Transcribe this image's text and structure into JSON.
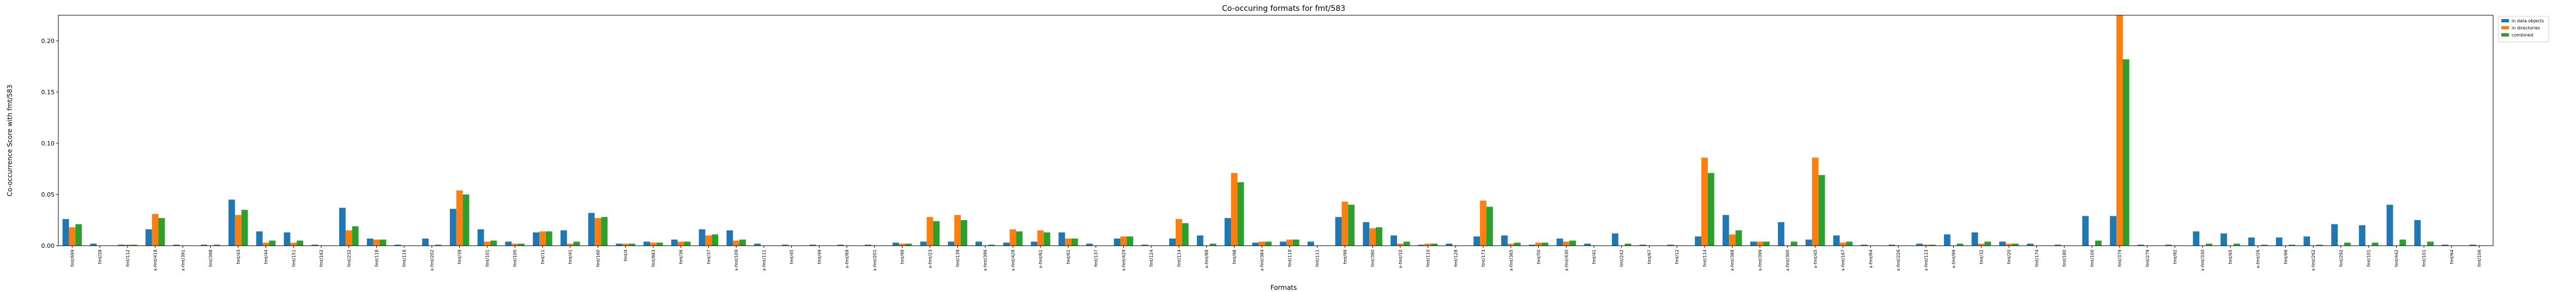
{
  "chart_data": {
    "type": "bar",
    "title": "Co-occuring formats for fmt/583",
    "xlabel": "Formats",
    "ylabel": "Co-occurrence Score with fmt/583",
    "ylim": [
      0,
      0.225
    ],
    "yticks": [
      0.0,
      0.05,
      0.1,
      0.15,
      0.2
    ],
    "ytick_labels": [
      "0.00",
      "0.05",
      "0.10",
      "0.15",
      "0.20"
    ],
    "grid": false,
    "legend_position": "top-right",
    "colors": [
      "#1f77b4",
      "#ff7f0e",
      "#2ca02c"
    ],
    "categories": [
      "fmt/699",
      "fmt/28",
      "fmt/112",
      "x-fmt/418",
      "x-fmt/391",
      "fmt/398",
      "fmt/43",
      "fmt/44",
      "fmt/151",
      "fmt/162",
      "fmt/232",
      "fmt/118",
      "fmt/116",
      "x-fmt/202",
      "fmt/39",
      "fmt/101",
      "fmt/100",
      "fmt/11",
      "fmt/41",
      "fmt/160",
      "fmt/4",
      "fmt/683",
      "fmt/36",
      "fmt/37",
      "x-fmt/109",
      "x-fmt/111",
      "fmt/45",
      "fmt/49",
      "x-fmt/69",
      "x-fmt/201",
      "fmt/99",
      "x-fmt/23",
      "fmt/139",
      "x-fmt/396",
      "x-fmt/428",
      "x-fmt/61",
      "fmt/61",
      "fmt/137",
      "x-fmt/429",
      "fmt/124",
      "fmt/114",
      "x-fmt/88",
      "fmt/98",
      "x-fmt/384",
      "fmt/119",
      "fmt/111",
      "fmt/99",
      "fmt/390",
      "x-fmt/10",
      "fmt/110",
      "fmt/128",
      "fmt/173",
      "x-fmt/365",
      "fmt/50",
      "x-fmt/430",
      "fmt/41",
      "fmt/242",
      "fmt/67",
      "fmt/12",
      "fmt/114",
      "x-fmt/388",
      "x-fmt/399",
      "x-fmt/300",
      "x-fmt/45",
      "x-fmt/167",
      "x-fmt/64",
      "x-fmt/226",
      "x-fmt/113",
      "x-fmt/99",
      "fmt/32",
      "fmt/20",
      "fmt/174",
      "fmt/180",
      "fmt/100",
      "fmt/379",
      "fmt/279",
      "fmt/92",
      "x-fmt/330",
      "fmt/65",
      "x-fmt/26",
      "fmt/66",
      "x-fmt/262",
      "fmt/292",
      "fmt/101",
      "fmt/442",
      "fmt/101",
      "fmt/64",
      "fmt/106"
    ],
    "series": [
      {
        "name": "in data objects",
        "values": [
          0.026,
          0.002,
          0.001,
          0.016,
          0.001,
          0.001,
          0.045,
          0.014,
          0.013,
          0.001,
          0.037,
          0.007,
          0.001,
          0.007,
          0.036,
          0.016,
          0.004,
          0.013,
          0.015,
          0.032,
          0.002,
          0.004,
          0.006,
          0.016,
          0.015,
          0.002,
          0.001,
          0.001,
          0.001,
          0.001,
          0.003,
          0.004,
          0.004,
          0.004,
          0.003,
          0.004,
          0.013,
          0.002,
          0.007,
          0.001,
          0.007,
          0.01,
          0.027,
          0.003,
          0.004,
          0.004,
          0.028,
          0.023,
          0.01,
          0.001,
          0.002,
          0.009,
          0.01,
          0.001,
          0.007,
          0.002,
          0.012,
          0.001,
          0.001,
          0.009,
          0.03,
          0.004,
          0.023,
          0.006,
          0.01,
          0.001,
          0.001,
          0.002,
          0.011,
          0.013,
          0.004,
          0.002,
          0.001,
          0.029,
          0.029,
          0.001,
          0.001,
          0.014,
          0.012,
          0.008,
          0.008,
          0.009,
          0.021,
          0.02,
          0.04,
          0.025,
          0.001,
          0.001
        ]
      },
      {
        "name": "in directories",
        "values": [
          0.018,
          0.0,
          0.001,
          0.031,
          0.0,
          0.0,
          0.03,
          0.003,
          0.003,
          0.0,
          0.015,
          0.006,
          0.0,
          0.0,
          0.054,
          0.004,
          0.002,
          0.014,
          0.002,
          0.027,
          0.002,
          0.003,
          0.004,
          0.01,
          0.005,
          0.0,
          0.0,
          0.0,
          0.0,
          0.0,
          0.002,
          0.028,
          0.03,
          0.0,
          0.016,
          0.015,
          0.007,
          0.0,
          0.009,
          0.0,
          0.026,
          0.0,
          0.071,
          0.004,
          0.006,
          0.0,
          0.043,
          0.017,
          0.002,
          0.002,
          0.0,
          0.044,
          0.002,
          0.003,
          0.004,
          0.0,
          0.0,
          0.0,
          0.0,
          0.086,
          0.011,
          0.004,
          0.0,
          0.086,
          0.003,
          0.0,
          0.0,
          0.001,
          0.0,
          0.002,
          0.002,
          0.0,
          0.0,
          0.0,
          0.225,
          0.0,
          0.0,
          0.0,
          0.0,
          0.0,
          0.0,
          0.0,
          0.0,
          0.0,
          0.0,
          0.0,
          0.0,
          0.0
        ]
      },
      {
        "name": "combined",
        "values": [
          0.021,
          0.0,
          0.001,
          0.027,
          0.0,
          0.001,
          0.035,
          0.005,
          0.005,
          0.0,
          0.019,
          0.006,
          0.0,
          0.001,
          0.05,
          0.005,
          0.002,
          0.014,
          0.004,
          0.028,
          0.002,
          0.003,
          0.004,
          0.011,
          0.006,
          0.0,
          0.0,
          0.0,
          0.0,
          0.0,
          0.002,
          0.024,
          0.025,
          0.001,
          0.014,
          0.013,
          0.007,
          0.0,
          0.009,
          0.0,
          0.022,
          0.002,
          0.062,
          0.004,
          0.006,
          0.0,
          0.04,
          0.018,
          0.004,
          0.002,
          0.0,
          0.038,
          0.003,
          0.003,
          0.005,
          0.0,
          0.002,
          0.0,
          0.0,
          0.071,
          0.015,
          0.004,
          0.004,
          0.069,
          0.004,
          0.0,
          0.0,
          0.001,
          0.002,
          0.004,
          0.002,
          0.0,
          0.0,
          0.005,
          0.182,
          0.0,
          0.0,
          0.002,
          0.002,
          0.001,
          0.001,
          0.001,
          0.003,
          0.003,
          0.006,
          0.004,
          0.0,
          0.0
        ]
      }
    ]
  }
}
